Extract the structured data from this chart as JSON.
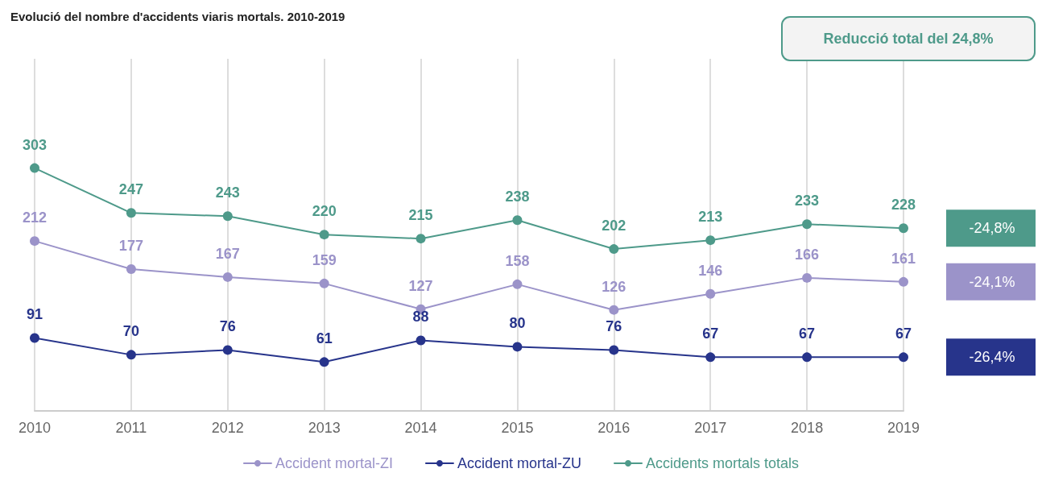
{
  "chart_data": {
    "type": "line",
    "title": "Evolució del nombre d'accidents viaris mortals. 2010-2019",
    "categories": [
      "2010",
      "2011",
      "2012",
      "2013",
      "2014",
      "2015",
      "2016",
      "2017",
      "2018",
      "2019"
    ],
    "series": [
      {
        "name": "Accident mortal-ZI",
        "color": "#9b93c9",
        "values": [
          212,
          177,
          167,
          159,
          127,
          158,
          126,
          146,
          166,
          161
        ]
      },
      {
        "name": "Accident mortal-ZU",
        "color": "#27348b",
        "values": [
          91,
          70,
          76,
          61,
          88,
          80,
          76,
          67,
          67,
          67
        ]
      },
      {
        "name": "Accidents mortals totals",
        "color": "#4e9a8a",
        "values": [
          303,
          247,
          243,
          220,
          215,
          238,
          202,
          213,
          233,
          228
        ]
      }
    ],
    "annotations": [
      "Reducció total del 24,8%",
      "-24,1%",
      "-26,4%",
      "-24,8%"
    ],
    "data_labels": true,
    "grid": "x",
    "legend": "bottom",
    "marker": "circle",
    "line_style": "solid"
  }
}
